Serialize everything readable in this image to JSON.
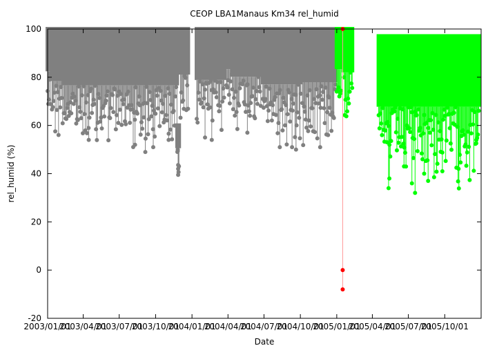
{
  "chart_data": {
    "type": "scatter",
    "title": "CEOP LBA1Manaus Km34  rel_humid",
    "xlabel": "Date",
    "ylabel": "rel_humid (%)",
    "xlim": [
      "2003-01-01",
      "2006-01-01"
    ],
    "ylim": [
      -20,
      100
    ],
    "y_ticks": [
      -20,
      0,
      20,
      40,
      60,
      80,
      100
    ],
    "x_ticks": [
      {
        "date": "2003-01-01",
        "label": "2003/01/01"
      },
      {
        "date": "2003-04-01",
        "label": "2003/04/01"
      },
      {
        "date": "2003-07-01",
        "label": "2003/07/01"
      },
      {
        "date": "2003-10-01",
        "label": "2003/10/01"
      },
      {
        "date": "2004-01-01",
        "label": "2004/01/01"
      },
      {
        "date": "2004-04-01",
        "label": "2004/04/01"
      },
      {
        "date": "2004-07-01",
        "label": "2004/07/01"
      },
      {
        "date": "2004-10-01",
        "label": "2004/10/01"
      },
      {
        "date": "2005-01-01",
        "label": "2005/01/01"
      },
      {
        "date": "2005-04-01",
        "label": "2005/04/01"
      },
      {
        "date": "2005-07-01",
        "label": "2005/07/01"
      },
      {
        "date": "2005-10-01",
        "label": "2005/10/01"
      }
    ],
    "grid": false,
    "legend": "none",
    "series": [
      {
        "color": "#808080",
        "segments": [
          {
            "start": "2003-01-01",
            "end": "2003-01-08",
            "min": 61,
            "max": 100
          },
          {
            "start": "2003-01-12",
            "end": "2003-02-08",
            "min": 52,
            "max": 100
          },
          {
            "start": "2003-02-11",
            "end": "2003-11-24",
            "min": 48,
            "max": 100,
            "dips": [
              {
                "date": "2003-04-15",
                "value": 54
              },
              {
                "date": "2003-08-10",
                "value": 52
              },
              {
                "date": "2003-09-05",
                "value": 49
              },
              {
                "date": "2003-09-25",
                "value": 51
              },
              {
                "date": "2003-11-03",
                "value": 54
              }
            ]
          },
          {
            "start": "2003-11-25",
            "end": "2003-11-29",
            "min": 39,
            "max": 60,
            "dips": [
              {
                "date": "2003-11-27",
                "value": 42
              },
              {
                "date": "2003-11-27",
                "value": 39.5
              },
              {
                "date": "2003-11-26",
                "value": 50
              }
            ]
          },
          {
            "start": "2003-12-03",
            "end": "2003-12-22",
            "min": 58,
            "max": 100
          },
          {
            "start": "2004-01-13",
            "end": "2004-03-22",
            "min": 53,
            "max": 100,
            "dips": [
              {
                "date": "2004-02-20",
                "value": 54
              },
              {
                "date": "2004-02-03",
                "value": 55
              }
            ]
          },
          {
            "start": "2004-03-28",
            "end": "2004-04-10",
            "min": 63,
            "max": 100
          },
          {
            "start": "2004-04-12",
            "end": "2004-06-23",
            "min": 56,
            "max": 100,
            "dips": [
              {
                "date": "2004-05-20",
                "value": 57
              }
            ]
          },
          {
            "start": "2004-06-28",
            "end": "2004-10-02",
            "min": 49,
            "max": 100,
            "dips": [
              {
                "date": "2004-08-10",
                "value": 51
              },
              {
                "date": "2004-09-10",
                "value": 51
              },
              {
                "date": "2004-09-20",
                "value": 50
              }
            ]
          },
          {
            "start": "2004-10-06",
            "end": "2004-12-29",
            "min": 51,
            "max": 100,
            "dips": [
              {
                "date": "2004-11-20",
                "value": 51
              },
              {
                "date": "2004-12-10",
                "value": 56
              }
            ]
          }
        ]
      },
      {
        "color": "#00ff00",
        "segments": [
          {
            "start": "2005-01-01",
            "end": "2005-01-12",
            "min": 63,
            "max": 100
          },
          {
            "start": "2005-01-19",
            "end": "2005-02-09",
            "min": 60,
            "max": 100
          },
          {
            "start": "2005-04-17",
            "end": "2005-12-26",
            "min": 32,
            "max": 97,
            "dips": [
              {
                "date": "2005-05-12",
                "value": 34
              },
              {
                "date": "2005-05-14",
                "value": 38
              },
              {
                "date": "2005-06-20",
                "value": 43
              },
              {
                "date": "2005-07-18",
                "value": 32
              },
              {
                "date": "2005-07-10",
                "value": 36
              },
              {
                "date": "2005-08-20",
                "value": 37
              },
              {
                "date": "2005-08-10",
                "value": 40
              },
              {
                "date": "2005-09-25",
                "value": 41
              },
              {
                "date": "2005-11-05",
                "value": 42
              },
              {
                "date": "2005-12-20",
                "value": 54
              }
            ]
          }
        ]
      },
      {
        "color": "#ff0000",
        "line_color": "#ff9999",
        "points": [
          {
            "date": "2005-01-16",
            "value": 100
          },
          {
            "date": "2005-01-16",
            "value": 0
          },
          {
            "date": "2005-01-16",
            "value": -8
          }
        ]
      }
    ]
  }
}
